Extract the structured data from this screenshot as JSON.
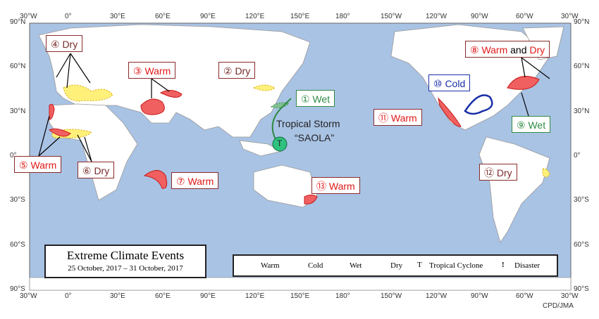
{
  "axes": {
    "lon": [
      "30°W",
      "0°",
      "30°E",
      "60°E",
      "90°E",
      "120°E",
      "150°E",
      "180°",
      "150°W",
      "120°W",
      "90°W",
      "60°W",
      "30°W"
    ],
    "lat": [
      "90°N",
      "60°N",
      "30°N",
      "0°",
      "30°S",
      "60°S",
      "90°S"
    ]
  },
  "title": {
    "main": "Extreme Climate Events",
    "period": "25 October, 2017 – 31 October, 2017"
  },
  "callouts": [
    {
      "text": "④ Dry"
    },
    {
      "text": "③ Warm"
    },
    {
      "text": "② Dry"
    },
    {
      "text": "① Wet"
    },
    {
      "text": "⑪ Warm"
    },
    {
      "text": "⑩ Cold"
    },
    {
      "parts": [
        "⑧ Warm",
        "and",
        "Dry"
      ]
    },
    {
      "text": "⑨ Wet"
    },
    {
      "text": "⑤ Warm"
    },
    {
      "text": "⑥ Dry"
    },
    {
      "text": "⑦ Warm"
    },
    {
      "text": "⑬ Warm"
    },
    {
      "text": "⑫ Dry"
    }
  ],
  "storm": {
    "label": "Tropical Storm",
    "name": "“SAOLA”",
    "icon": "T"
  },
  "legend": [
    {
      "label": "Warm"
    },
    {
      "label": "Cold"
    },
    {
      "label": "Wet"
    },
    {
      "label": "Dry"
    },
    {
      "icon": "T",
      "label": "Tropical  Cyclone"
    },
    {
      "icon": "!",
      "label": "Disaster"
    }
  ],
  "footer": "CPD/JMA"
}
